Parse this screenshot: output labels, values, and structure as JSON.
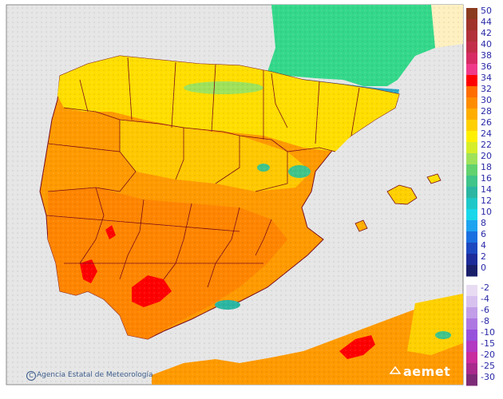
{
  "legend": {
    "warm_ticks": [
      "50",
      "44",
      "42",
      "40",
      "38",
      "36",
      "34",
      "32",
      "30",
      "28",
      "26",
      "24",
      "22",
      "20",
      "18",
      "16",
      "14",
      "12",
      "10",
      "8",
      "6",
      "4",
      "2",
      "0"
    ],
    "warm_colors": [
      "#8b3b1e",
      "#a0332a",
      "#b1303a",
      "#c22e4a",
      "#d62c63",
      "#ef3a8a",
      "#ff0000",
      "#ff6d00",
      "#ff8c00",
      "#ffae00",
      "#ffd000",
      "#fff000",
      "#d6ee2a",
      "#9fe25a",
      "#62d26e",
      "#3fc48a",
      "#2ab6a2",
      "#1ec8c8",
      "#18d7ea",
      "#1ea3f0",
      "#1a6fe0",
      "#1c47bf",
      "#1d2c99",
      "#1a1f6a"
    ],
    "cold_ticks": [
      "-2",
      "-4",
      "-6",
      "-8",
      "-10",
      "-15",
      "-20",
      "-25",
      "-30"
    ],
    "cold_colors": [
      "#e8dcf2",
      "#d7c2ef",
      "#c29ee8",
      "#ad78e2",
      "#9752dc",
      "#b338c2",
      "#c82c9e",
      "#a72a8c",
      "#7d2b77"
    ]
  },
  "credit": {
    "copyright_symbol": "C",
    "text": "Agencia Estatal de Meteorología"
  },
  "logo": {
    "text": "aemet"
  },
  "colors": {
    "sea": "#e6e6e6",
    "warm": "#ffb000",
    "hot": "#ff8a00",
    "very_hot": "#ff0000",
    "mild": "#ffe800",
    "cool": "#40d070",
    "cold": "#2aa8c8",
    "border": "#7a0a1a"
  }
}
